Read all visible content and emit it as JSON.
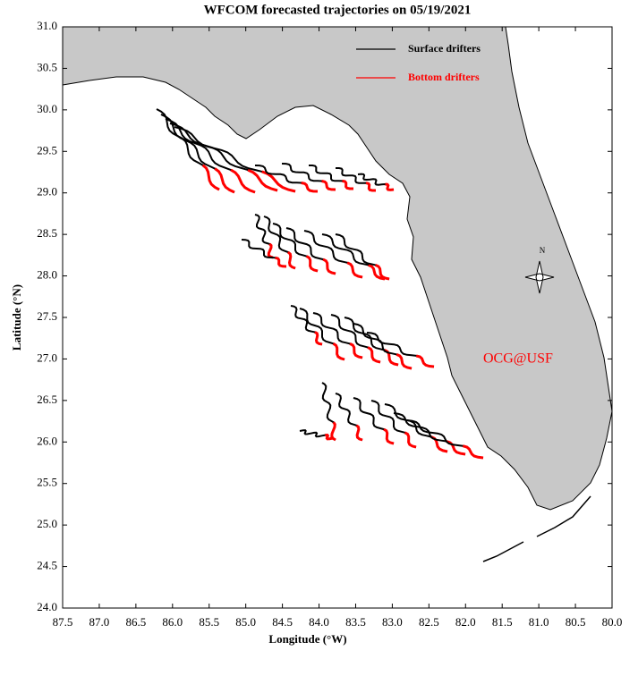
{
  "chart_data": {
    "type": "map",
    "title": "WFCOM forecasted trajectories on 05/19/2021",
    "x_label": "Longitude (°W)",
    "y_label": "Latitude (°N)",
    "xlim": [
      87.5,
      80.0
    ],
    "ylim": [
      24.0,
      31.0
    ],
    "xticks": [
      87.5,
      {
        "value": 87.0,
        "label": "87.0"
      },
      86.5,
      {
        "value": 86.0,
        "label": "86.0"
      },
      85.5,
      {
        "value": 85.0,
        "label": "85.0"
      },
      84.5,
      {
        "value": 84.0,
        "label": "84.0"
      },
      83.5,
      {
        "value": 83.0,
        "label": "83.0"
      },
      82.5,
      {
        "value": 82.0,
        "label": "82.0"
      },
      81.5,
      {
        "value": 81.0,
        "label": "81.0"
      },
      80.5,
      {
        "value": 80.0,
        "label": "80.0"
      }
    ],
    "yticks": [
      {
        "value": 24.0,
        "label": "24.0"
      },
      24.5,
      {
        "value": 25.0,
        "label": "25.0"
      },
      25.5,
      {
        "value": 26.0,
        "label": "26.0"
      },
      26.5,
      {
        "value": 27.0,
        "label": "27.0"
      },
      27.5,
      {
        "value": 28.0,
        "label": "28.0"
      },
      28.5,
      {
        "value": 29.0,
        "label": "29.0"
      },
      29.5,
      {
        "value": 30.0,
        "label": "30.0"
      },
      30.5,
      {
        "value": 31.0,
        "label": "31.0"
      }
    ],
    "series": [
      {
        "name": "Surface drifters",
        "color": "#000000"
      },
      {
        "name": "Bottom drifters",
        "color": "#ff0000"
      }
    ],
    "annotation": "OCG@USF",
    "compass": "N"
  }
}
